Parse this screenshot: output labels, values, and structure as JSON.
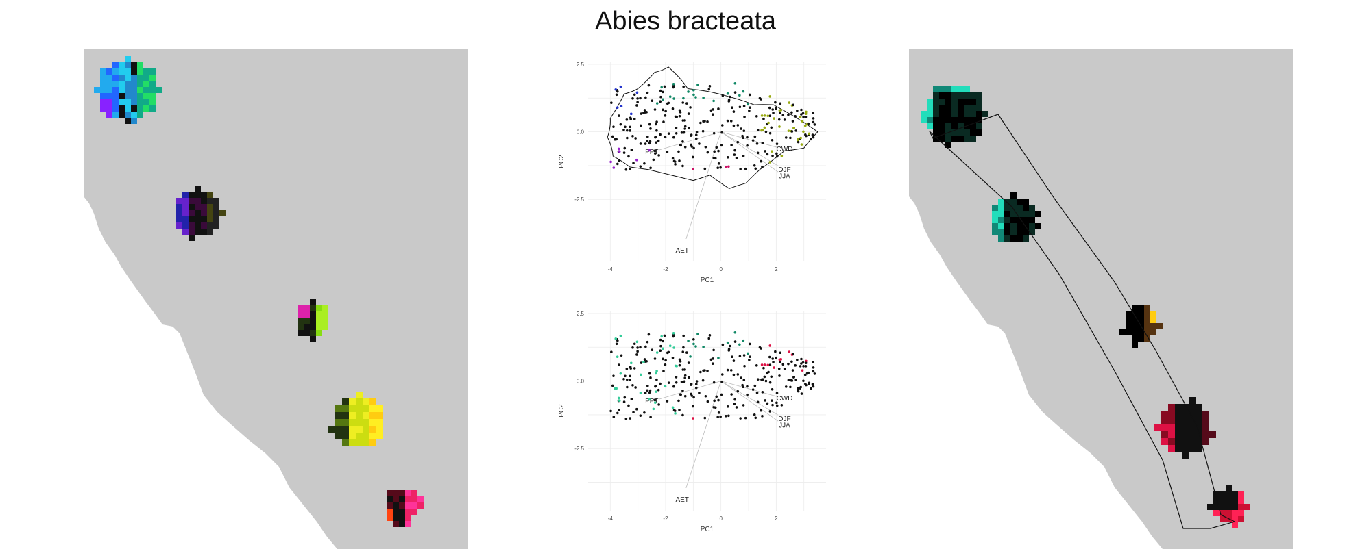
{
  "figure": {
    "title": "Abies bracteata"
  },
  "chart_data": [
    {
      "type": "scatter",
      "panel": "pca-top",
      "xlabel": "PC1",
      "ylabel": "PC2",
      "xlim": [
        -4.8,
        3.8
      ],
      "ylim": [
        -4.8,
        2.6
      ],
      "xticks": [
        -4,
        -2,
        0,
        2
      ],
      "yticks": [
        2.5,
        0.0,
        -2.5
      ],
      "xtick_labels": [
        "-4",
        "-2",
        "0",
        "2"
      ],
      "ytick_labels": [
        "2.5",
        "0.0",
        "-2.5"
      ],
      "grid": true,
      "vectors": [
        {
          "label": "PPT",
          "x": -2.5,
          "y": -0.75
        },
        {
          "label": "CWD",
          "x": 2.3,
          "y": -0.65
        },
        {
          "label": "DJF",
          "x": 2.3,
          "y": -1.4
        },
        {
          "label": "JJA",
          "x": 2.3,
          "y": -1.65
        },
        {
          "label": "AET",
          "x": -1.4,
          "y": -4.4
        }
      ],
      "hull": true
    },
    {
      "type": "scatter",
      "panel": "pca-bottom",
      "xlabel": "PC1",
      "ylabel": "PC2",
      "xlim": [
        -4.8,
        3.8
      ],
      "ylim": [
        -4.8,
        2.6
      ],
      "xticks": [
        -4,
        -2,
        0,
        2
      ],
      "yticks": [
        2.5,
        0.0,
        -2.5
      ],
      "xtick_labels": [
        "-4",
        "-2",
        "0",
        "2"
      ],
      "ytick_labels": [
        "2.5",
        "0.0",
        "-2.5"
      ],
      "grid": true,
      "vectors": [
        {
          "label": "PPT",
          "x": -2.5,
          "y": -0.75
        },
        {
          "label": "CWD",
          "x": 2.3,
          "y": -0.65
        },
        {
          "label": "DJF",
          "x": 2.3,
          "y": -1.4
        },
        {
          "label": "JJA",
          "x": 2.3,
          "y": -1.65
        },
        {
          "label": "AET",
          "x": -1.4,
          "y": -4.4
        }
      ],
      "hull": false
    }
  ],
  "colors": {
    "map_background": "#c9c9c9",
    "land": "#c9c9c9",
    "ocean": "#ffffff"
  }
}
